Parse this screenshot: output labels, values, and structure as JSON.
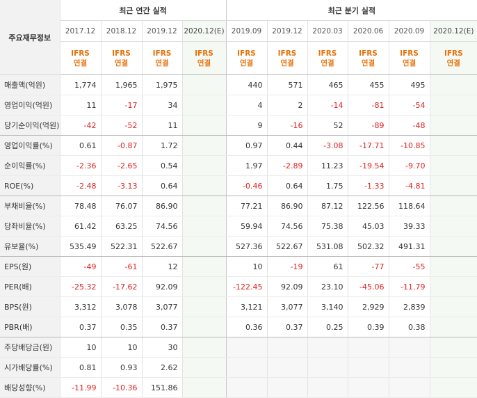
{
  "header": {
    "corner": "주요재무정보",
    "annual_group": "최근 연간 실적",
    "quarter_group": "최근 분기 실적",
    "annual_periods": [
      "2017.12",
      "2018.12",
      "2019.12",
      "2020.12(E)"
    ],
    "quarter_periods": [
      "2019.09",
      "2019.12",
      "2020.03",
      "2020.06",
      "2020.09",
      "2020.12(E)"
    ],
    "standard_line1": "IFRS",
    "standard_line2": "연결"
  },
  "rows": [
    {
      "label": "매출액(억원)",
      "annual": [
        "1,774",
        "1,965",
        "1,975",
        ""
      ],
      "quarter": [
        "440",
        "571",
        "465",
        "455",
        "495",
        ""
      ]
    },
    {
      "label": "영업이익(억원)",
      "annual": [
        "11",
        "-17",
        "34",
        ""
      ],
      "quarter": [
        "4",
        "2",
        "-14",
        "-81",
        "-54",
        ""
      ]
    },
    {
      "label": "당기순이익(억원)",
      "annual": [
        "-42",
        "-52",
        "11",
        ""
      ],
      "quarter": [
        "9",
        "-16",
        "52",
        "-89",
        "-48",
        ""
      ]
    },
    {
      "label": "영업이익률(%)",
      "annual": [
        "0.61",
        "-0.87",
        "1.72",
        ""
      ],
      "quarter": [
        "0.97",
        "0.44",
        "-3.08",
        "-17.71",
        "-10.85",
        ""
      ]
    },
    {
      "label": "순이익률(%)",
      "annual": [
        "-2.36",
        "-2.65",
        "0.54",
        ""
      ],
      "quarter": [
        "1.97",
        "-2.89",
        "11.23",
        "-19.54",
        "-9.70",
        ""
      ]
    },
    {
      "label": "ROE(%)",
      "annual": [
        "-2.48",
        "-3.13",
        "0.64",
        ""
      ],
      "quarter": [
        "-0.46",
        "0.64",
        "1.75",
        "-1.33",
        "-4.81",
        ""
      ]
    },
    {
      "label": "부채비율(%)",
      "annual": [
        "78.48",
        "76.07",
        "86.90",
        ""
      ],
      "quarter": [
        "77.21",
        "86.90",
        "87.12",
        "122.56",
        "118.64",
        ""
      ]
    },
    {
      "label": "당좌비율(%)",
      "annual": [
        "61.42",
        "63.25",
        "74.56",
        ""
      ],
      "quarter": [
        "59.94",
        "74.56",
        "75.38",
        "45.03",
        "39.33",
        ""
      ]
    },
    {
      "label": "유보율(%)",
      "annual": [
        "535.49",
        "522.31",
        "522.67",
        ""
      ],
      "quarter": [
        "527.36",
        "522.67",
        "531.08",
        "502.32",
        "491.31",
        ""
      ]
    },
    {
      "label": "EPS(원)",
      "annual": [
        "-49",
        "-61",
        "12",
        ""
      ],
      "quarter": [
        "10",
        "-19",
        "61",
        "-77",
        "-55",
        ""
      ]
    },
    {
      "label": "PER(배)",
      "annual": [
        "-25.32",
        "-17.62",
        "92.09",
        ""
      ],
      "quarter": [
        "-122.45",
        "92.09",
        "23.10",
        "-45.06",
        "-11.79",
        ""
      ]
    },
    {
      "label": "BPS(원)",
      "annual": [
        "3,312",
        "3,078",
        "3,077",
        ""
      ],
      "quarter": [
        "3,121",
        "3,077",
        "3,140",
        "2,929",
        "2,839",
        ""
      ]
    },
    {
      "label": "PBR(배)",
      "annual": [
        "0.37",
        "0.35",
        "0.37",
        ""
      ],
      "quarter": [
        "0.36",
        "0.37",
        "0.25",
        "0.39",
        "0.38",
        ""
      ]
    },
    {
      "label": "주당배당금(원)",
      "annual": [
        "10",
        "10",
        "30",
        ""
      ],
      "quarter": [
        "",
        "",
        "",
        "",
        "",
        ""
      ]
    },
    {
      "label": "시가배당률(%)",
      "annual": [
        "0.81",
        "0.93",
        "2.62",
        ""
      ],
      "quarter": [
        "",
        "",
        "",
        "",
        "",
        ""
      ]
    },
    {
      "label": "배당성향(%)",
      "annual": [
        "-11.99",
        "-10.36",
        "151.86",
        ""
      ],
      "quarter": [
        "",
        "",
        "",
        "",
        "",
        ""
      ]
    }
  ],
  "colors": {
    "negative": "#e02020",
    "ifrs": "#e8720c",
    "estimate_bg": "#f5f9f3",
    "label_bg": "#f2f2f2"
  }
}
